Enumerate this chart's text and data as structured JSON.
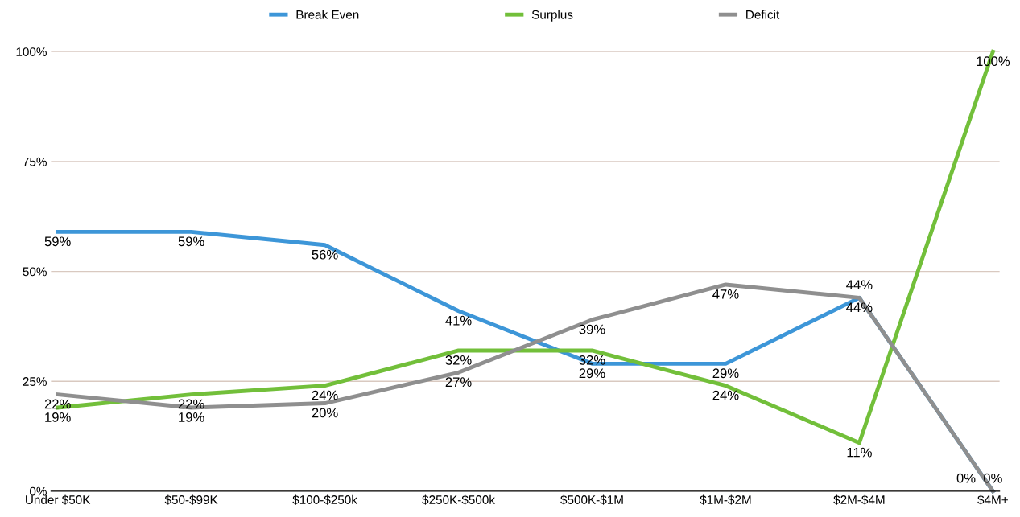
{
  "chart_data": {
    "type": "line",
    "categories": [
      "Under $50K",
      "$50-$99K",
      "$100-$250k",
      "$250K-$500k",
      "$500K-$1M",
      "$1M-$2M",
      "$2M-$4M",
      "$4M+"
    ],
    "series": [
      {
        "name": "Break Even",
        "color": "#3d96d8",
        "values": [
          59,
          59,
          56,
          41,
          29,
          29,
          44,
          0
        ],
        "value_labels": [
          "59%",
          "59%",
          "56%",
          "41%",
          "29%",
          "29%",
          "44%",
          "0%"
        ]
      },
      {
        "name": "Surplus",
        "color": "#72bf3a",
        "values": [
          19,
          22,
          24,
          32,
          32,
          24,
          11,
          100
        ],
        "value_labels": [
          "19%",
          "22%",
          "24%",
          "32%",
          "32%",
          "24%",
          "11%",
          "100%"
        ]
      },
      {
        "name": "Deficit",
        "color": "#8f8f8f",
        "values": [
          22,
          19,
          20,
          27,
          39,
          47,
          44,
          0
        ],
        "value_labels": [
          "22%",
          "19%",
          "20%",
          "27%",
          "39%",
          "47%",
          "44%",
          "0%"
        ]
      }
    ],
    "ylim": [
      0,
      100
    ],
    "yticks": [
      {
        "value": 0,
        "label": "0%"
      },
      {
        "value": 25,
        "label": "25%"
      },
      {
        "value": 50,
        "label": "50%"
      },
      {
        "value": 75,
        "label": "75%"
      },
      {
        "value": 100,
        "label": "100%"
      }
    ],
    "grid": "y",
    "legend": "top",
    "marker": "none",
    "line_style": "solid"
  }
}
